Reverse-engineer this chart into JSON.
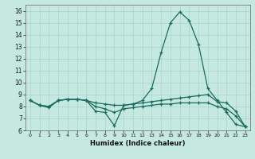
{
  "xlabel": "Humidex (Indice chaleur)",
  "background_color": "#c5e8e0",
  "grid_color": "#a8d4cc",
  "line_color": "#1a6b60",
  "xlim": [
    -0.5,
    23.5
  ],
  "ylim": [
    6,
    16.5
  ],
  "xticks": [
    0,
    1,
    2,
    3,
    4,
    5,
    6,
    7,
    8,
    9,
    10,
    11,
    12,
    13,
    14,
    15,
    16,
    17,
    18,
    19,
    20,
    21,
    22,
    23
  ],
  "yticks": [
    6,
    7,
    8,
    9,
    10,
    11,
    12,
    13,
    14,
    15,
    16
  ],
  "series": [
    [
      8.5,
      8.1,
      7.9,
      8.5,
      8.6,
      8.6,
      8.5,
      7.6,
      7.5,
      6.4,
      8.1,
      8.2,
      8.5,
      9.5,
      12.5,
      15.0,
      15.9,
      15.2,
      13.2,
      9.5,
      8.5,
      7.5,
      6.5,
      6.3
    ],
    [
      8.5,
      8.1,
      8.0,
      8.5,
      8.6,
      8.6,
      8.5,
      8.3,
      8.2,
      8.1,
      8.1,
      8.2,
      8.3,
      8.4,
      8.5,
      8.6,
      8.7,
      8.8,
      8.9,
      9.0,
      8.4,
      8.3,
      7.6,
      6.3
    ],
    [
      8.5,
      8.1,
      8.0,
      8.5,
      8.6,
      8.6,
      8.5,
      8.0,
      7.8,
      7.5,
      7.8,
      7.9,
      8.0,
      8.1,
      8.2,
      8.2,
      8.3,
      8.3,
      8.3,
      8.3,
      8.0,
      7.8,
      7.2,
      6.3
    ]
  ]
}
